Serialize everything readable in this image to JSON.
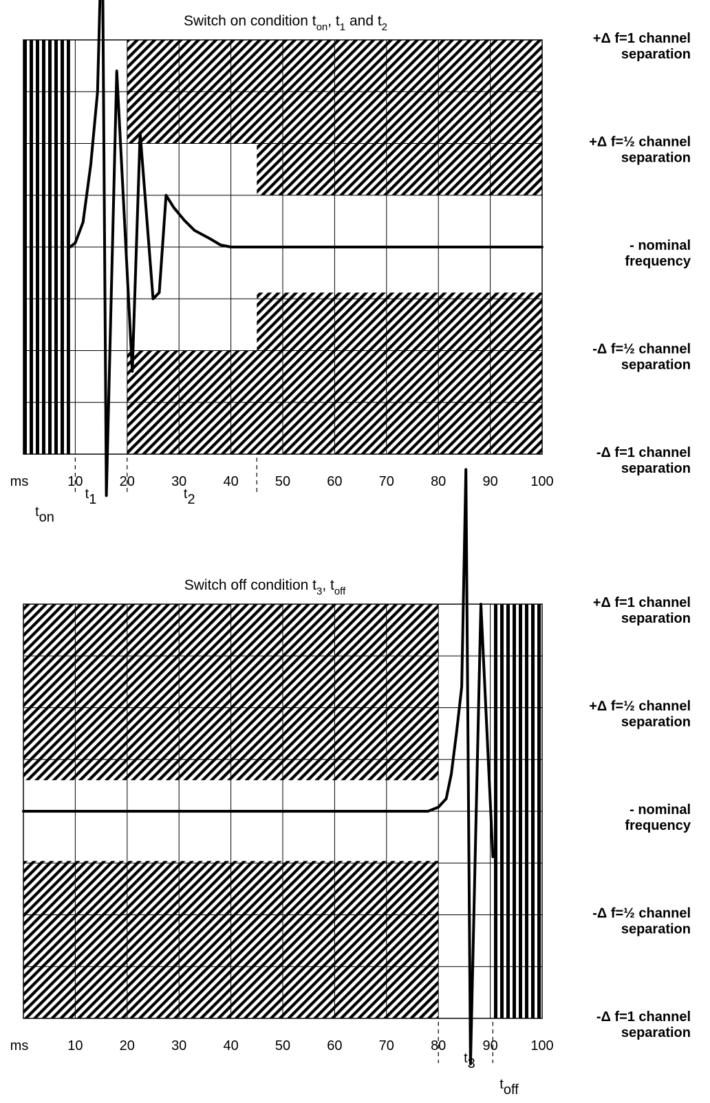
{
  "chart_data": [
    {
      "type": "line",
      "title": {
        "main": "Switch on condition t",
        "s1": "on",
        "m1": ", t",
        "s2": "1",
        "m2": " and t",
        "s3": "2"
      },
      "xunit": "ms",
      "xlim": [
        0,
        100
      ],
      "xticks": [
        "10",
        "20",
        "30",
        "40",
        "50",
        "60",
        "70",
        "80",
        "90",
        "100"
      ],
      "ylim": [
        -1,
        1
      ],
      "y_levels": [
        {
          "y": 1,
          "line1": "+Δ f=1 channel",
          "line2": "separation"
        },
        {
          "y": 0.5,
          "line1": "+Δ f=½ channel",
          "line2": "separation"
        },
        {
          "y": 0,
          "line1": "- nominal",
          "line2": "frequency"
        },
        {
          "y": -0.5,
          "line1": "-Δ f=½ channel",
          "line2": "separation"
        },
        {
          "y": -1,
          "line1": "-Δ f=1 channel",
          "line2": "separation"
        }
      ],
      "vertical_band": {
        "x0": 0,
        "x1": 9,
        "label": "t",
        "sub": "on"
      },
      "forbidden_regions": [
        {
          "x0": 20,
          "x1": 100,
          "y0": 0.5,
          "y1": 1
        },
        {
          "x0": 20,
          "x1": 100,
          "y0": -1,
          "y1": -0.5
        },
        {
          "x0": 45,
          "x1": 100,
          "y0": 0.25,
          "y1": 0.5
        },
        {
          "x0": 45,
          "x1": 100,
          "y0": -0.5,
          "y1": -0.22
        }
      ],
      "period_markers": [
        {
          "label": "t",
          "sub": "1",
          "x": 13
        },
        {
          "label": "t",
          "sub": "2",
          "x": 32
        }
      ],
      "dashed_markers_x": [
        10,
        20,
        45
      ],
      "series": [
        {
          "x": [
            9,
            10,
            11.5,
            13,
            14.3,
            15.2,
            16,
            18,
            21,
            22.5,
            25,
            26.2,
            27.5,
            29,
            31,
            33,
            36,
            38,
            40,
            45,
            100
          ],
          "y": [
            0,
            0.02,
            0.12,
            0.4,
            0.75,
            1.62,
            -1.2,
            0.85,
            -0.6,
            0.55,
            -0.25,
            -0.22,
            0.25,
            0.19,
            0.13,
            0.08,
            0.04,
            0.01,
            0,
            0,
            0
          ]
        }
      ]
    },
    {
      "type": "line",
      "title": {
        "main": "Switch off condition t",
        "s1": "3",
        "m1": ", t",
        "s2": "off",
        "m2": "",
        "s3": ""
      },
      "xunit": "ms",
      "xlim": [
        0,
        100
      ],
      "xticks": [
        "10",
        "20",
        "30",
        "40",
        "50",
        "60",
        "70",
        "80",
        "90",
        "100"
      ],
      "ylim": [
        -1,
        1
      ],
      "y_levels": [
        {
          "y": 1,
          "line1": "+Δ f=1 channel",
          "line2": "separation"
        },
        {
          "y": 0.5,
          "line1": "+Δ f=½ channel",
          "line2": "separation"
        },
        {
          "y": 0,
          "line1": "- nominal",
          "line2": "frequency"
        },
        {
          "y": -0.5,
          "line1": "-Δ f=½ channel",
          "line2": "separation"
        },
        {
          "y": -1,
          "line1": "-Δ f=1 channel",
          "line2": "separation"
        }
      ],
      "vertical_band": {
        "x0": 90.5,
        "x1": 100,
        "label": "t",
        "sub": "off"
      },
      "forbidden_regions": [
        {
          "x0": 0,
          "x1": 80,
          "y0": 0.15,
          "y1": 1
        },
        {
          "x0": 0,
          "x1": 80,
          "y0": -1,
          "y1": -0.24
        }
      ],
      "period_markers": [
        {
          "label": "t",
          "sub": "3",
          "x": 86
        }
      ],
      "dashed_markers_x": [
        80,
        90.5
      ],
      "series": [
        {
          "x": [
            0,
            78,
            80,
            81.5,
            82.5,
            83.5,
            84.5,
            85.3,
            86.2,
            88.2,
            90.5
          ],
          "y": [
            0,
            0,
            0.02,
            0.06,
            0.18,
            0.38,
            0.6,
            1.65,
            -1.22,
            1.0,
            -0.22
          ]
        }
      ]
    }
  ]
}
